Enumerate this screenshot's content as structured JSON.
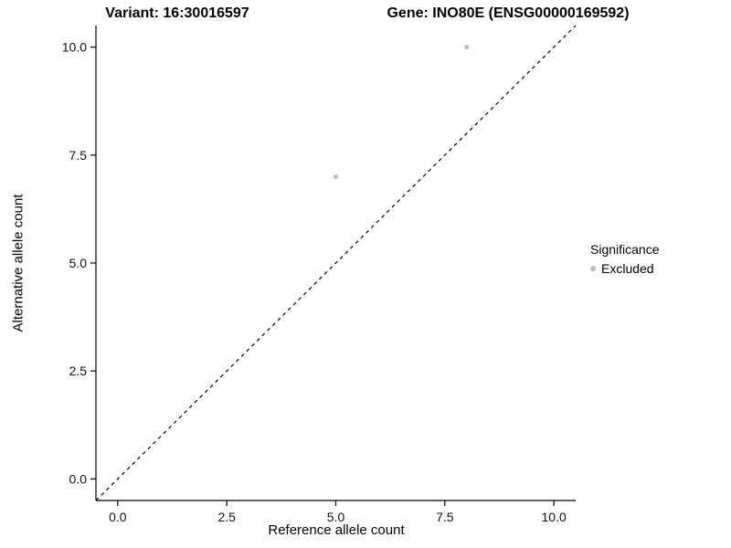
{
  "chart_data": {
    "type": "scatter",
    "title_left": "Variant: 16:30016597",
    "title_right": "Gene: INO80E (ENSG00000169592)",
    "xlabel": "Reference allele count",
    "ylabel": "Alternative allele count",
    "xlim": [
      0,
      10
    ],
    "ylim": [
      0,
      10
    ],
    "axis_expansion": 0.5,
    "xticks": [
      0,
      2.5,
      5,
      7.5,
      10
    ],
    "yticks": [
      0,
      2.5,
      5,
      7.5,
      10
    ],
    "tick_label_format": "one-decimal",
    "grid": false,
    "reference_line": {
      "type": "identity-diagonal",
      "style": "dashed",
      "color": "#000000"
    },
    "series": [
      {
        "name": "Excluded",
        "color": "#bcbcbc",
        "marker": "circle",
        "marker_radius": 2.5,
        "points": [
          {
            "x": 5,
            "y": 7
          },
          {
            "x": 8,
            "y": 10
          }
        ]
      }
    ],
    "legend": {
      "position": "right",
      "title": "Significance",
      "entries": [
        {
          "label": "Excluded",
          "color": "#bcbcbc"
        }
      ]
    },
    "colors": {
      "axis": "#000000",
      "tick_text": "#111111",
      "background": "#ffffff"
    }
  }
}
